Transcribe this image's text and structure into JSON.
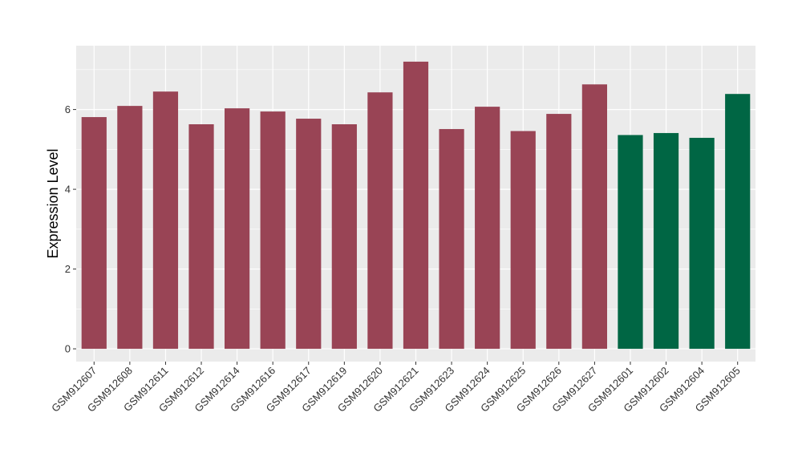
{
  "chart_data": {
    "type": "bar",
    "ylabel": "Expression Level",
    "xlabel": "",
    "ylim": [
      -0.32,
      7.6
    ],
    "yticks": [
      0,
      2,
      4,
      6
    ],
    "grid": true,
    "colors": {
      "group_a": "#994455",
      "group_b": "#006644",
      "panel": "#ebebeb",
      "grid": "#ffffff"
    },
    "categories": [
      "GSM912607",
      "GSM912608",
      "GSM912611",
      "GSM912612",
      "GSM912614",
      "GSM912616",
      "GSM912617",
      "GSM912619",
      "GSM912620",
      "GSM912621",
      "GSM912623",
      "GSM912624",
      "GSM912625",
      "GSM912626",
      "GSM912627",
      "GSM912601",
      "GSM912602",
      "GSM912604",
      "GSM912605"
    ],
    "values": [
      5.81,
      6.09,
      6.45,
      5.63,
      6.03,
      5.95,
      5.77,
      5.63,
      6.43,
      7.2,
      5.51,
      6.07,
      5.46,
      5.89,
      6.63,
      5.36,
      5.41,
      5.29,
      6.39
    ],
    "groups": [
      "a",
      "a",
      "a",
      "a",
      "a",
      "a",
      "a",
      "a",
      "a",
      "a",
      "a",
      "a",
      "a",
      "a",
      "a",
      "b",
      "b",
      "b",
      "b"
    ]
  }
}
